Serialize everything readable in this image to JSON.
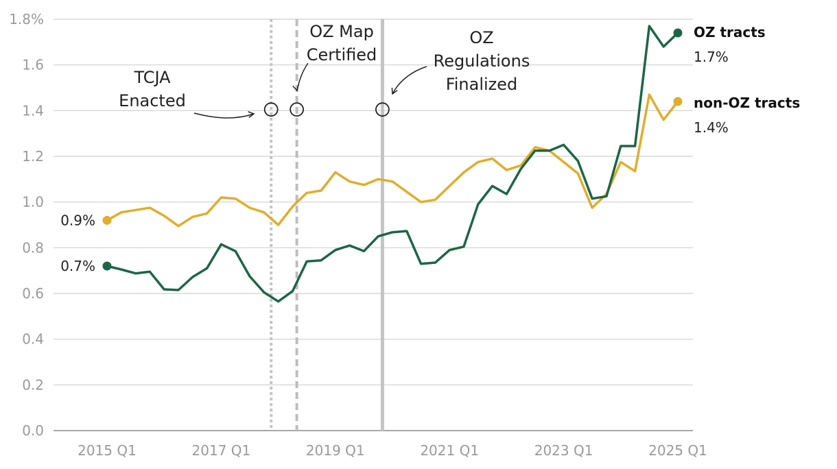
{
  "chart_data": {
    "type": "line",
    "y_unit_label": "%",
    "ylim": [
      0,
      1.8
    ],
    "y_ticks": [
      {
        "value": 1.8,
        "label": "1.8%"
      },
      {
        "value": 1.6,
        "label": "1.6"
      },
      {
        "value": 1.4,
        "label": "1.4"
      },
      {
        "value": 1.2,
        "label": "1.2"
      },
      {
        "value": 1.0,
        "label": "1.0"
      },
      {
        "value": 0.8,
        "label": "0.8"
      },
      {
        "value": 0.6,
        "label": "0.6"
      },
      {
        "value": 0.4,
        "label": "0.4"
      },
      {
        "value": 0.2,
        "label": "0.2"
      },
      {
        "value": 0.0,
        "label": "0.0"
      }
    ],
    "x_start": "2015 Q1",
    "x_ticks": [
      {
        "index": 0,
        "label": "2015 Q1"
      },
      {
        "index": 8,
        "label": "2017 Q1"
      },
      {
        "index": 16,
        "label": "2019 Q1"
      },
      {
        "index": 24,
        "label": "2021 Q1"
      },
      {
        "index": 32,
        "label": "2023 Q1"
      },
      {
        "index": 40,
        "label": "2025 Q1"
      }
    ],
    "series": [
      {
        "name": "non-OZ tracts",
        "color": "#e0ae2c",
        "start_label": "0.9%",
        "end_label": "1.4%",
        "values": [
          0.92,
          0.955,
          0.965,
          0.975,
          0.94,
          0.895,
          0.935,
          0.95,
          1.02,
          1.015,
          0.975,
          0.955,
          0.9,
          0.98,
          1.04,
          1.05,
          1.13,
          1.09,
          1.075,
          1.1,
          1.09,
          1.045,
          1.0,
          1.01,
          1.07,
          1.13,
          1.175,
          1.19,
          1.14,
          1.16,
          1.24,
          1.225,
          1.175,
          1.125,
          0.975,
          1.035,
          1.175,
          1.135,
          1.47,
          1.36,
          1.44
        ]
      },
      {
        "name": "OZ tracts",
        "color": "#1e6545",
        "start_label": "0.7%",
        "end_label": "1.7%",
        "values": [
          0.72,
          0.705,
          0.688,
          0.695,
          0.618,
          0.615,
          0.672,
          0.71,
          0.815,
          0.785,
          0.675,
          0.605,
          0.565,
          0.61,
          0.74,
          0.745,
          0.79,
          0.81,
          0.785,
          0.85,
          0.868,
          0.873,
          0.73,
          0.735,
          0.79,
          0.805,
          0.99,
          1.07,
          1.035,
          1.145,
          1.225,
          1.225,
          1.25,
          1.18,
          1.015,
          1.025,
          1.245,
          1.245,
          1.77,
          1.68,
          1.74
        ]
      }
    ],
    "events": [
      {
        "label_lines": [
          "TCJA",
          "Enacted"
        ],
        "x_index": 11.5,
        "style": "dotted"
      },
      {
        "label_lines": [
          "OZ Map",
          "Certified"
        ],
        "x_index": 13.3,
        "style": "dashed"
      },
      {
        "label_lines": [
          "OZ",
          "Regulations",
          "Finalized"
        ],
        "x_index": 19.3,
        "style": "solid"
      }
    ],
    "marker_y_value": 1.405
  }
}
